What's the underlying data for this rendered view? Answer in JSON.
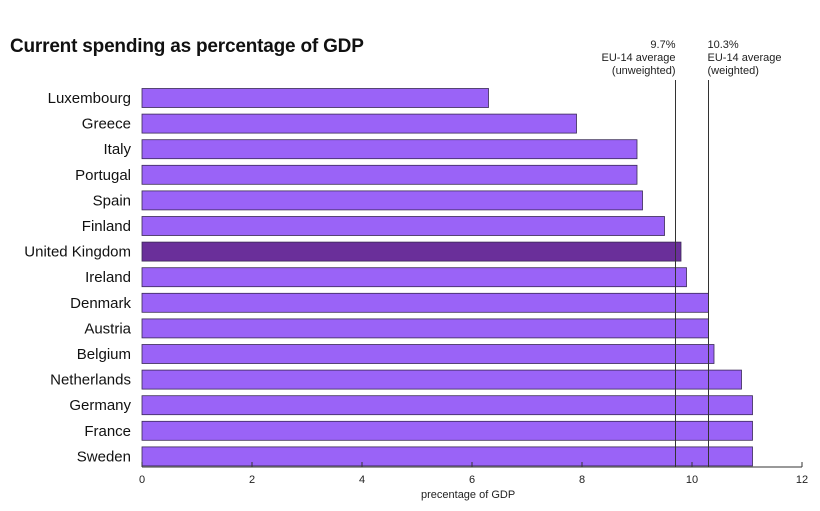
{
  "chart_data": {
    "type": "bar",
    "orientation": "horizontal",
    "title": "Current spending as percentage of GDP",
    "xlabel": "precentage of GDP",
    "ylabel": "",
    "xlim": [
      0,
      12
    ],
    "xticks": [
      0,
      2,
      4,
      6,
      8,
      10,
      12
    ],
    "grid": false,
    "categories": [
      "Luxembourg",
      "Greece",
      "Italy",
      "Portugal",
      "Spain",
      "Finland",
      "United Kingdom",
      "Ireland",
      "Denmark",
      "Austria",
      "Belgium",
      "Netherlands",
      "Germany",
      "France",
      "Sweden"
    ],
    "values": [
      6.3,
      7.9,
      9.0,
      9.0,
      9.1,
      9.5,
      9.8,
      9.9,
      10.3,
      10.3,
      10.4,
      10.9,
      11.1,
      11.1,
      11.1
    ],
    "highlight_category": "United Kingdom",
    "bar_color": "#9a63f7",
    "highlight_color": "#6a2f9a",
    "bar_edge_color": "#3a2a55",
    "reference_lines": [
      {
        "value": 9.7,
        "lines": [
          "9.7%",
          "EU-14 average",
          "(unweighted)"
        ]
      },
      {
        "value": 10.3,
        "lines": [
          "10.3%",
          "EU-14 average",
          "(weighted)"
        ]
      }
    ]
  }
}
